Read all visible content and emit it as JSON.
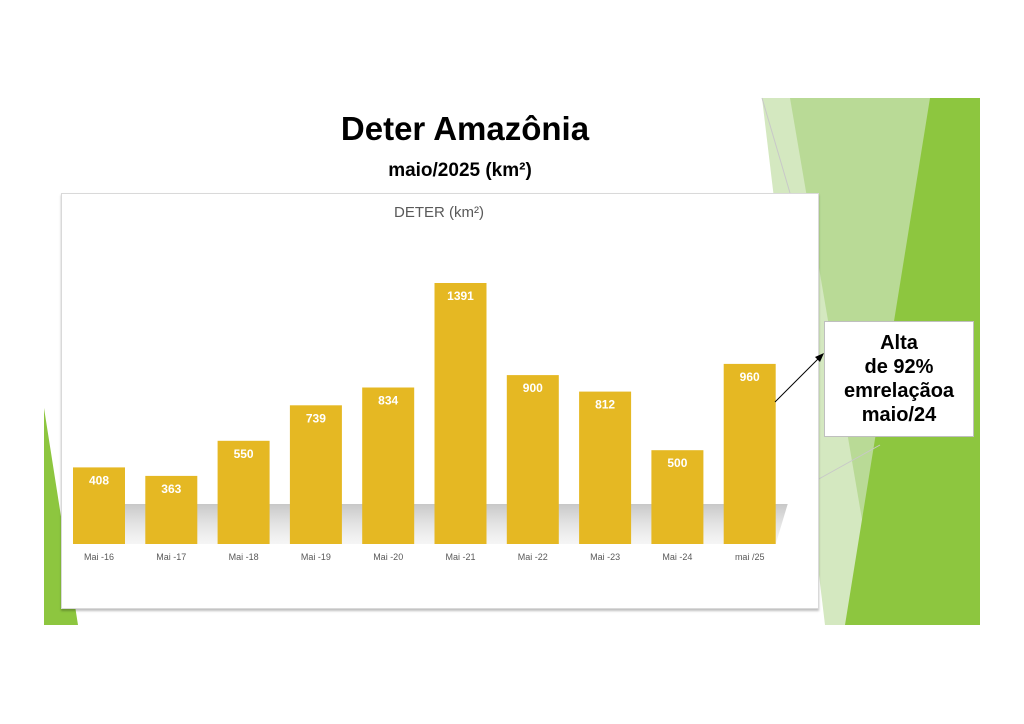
{
  "slide": {
    "title": "Deter Amazônia",
    "subtitle": "maio/2025 (km²)",
    "callout_lines": [
      "Alta",
      "de 92%",
      "emrelaçãoa",
      "maio/24"
    ]
  },
  "colors": {
    "bar": "#E5B823",
    "bar_label": "#ffffff",
    "green_dark": "#8DC63F",
    "green_light": "#D4E8C0"
  },
  "chart_data": {
    "type": "bar",
    "title": "DETER (km²)",
    "categories": [
      "Mai -16",
      "Mai -17",
      "Mai -18",
      "Mai -19",
      "Mai -20",
      "Mai -21",
      "Mai -22",
      "Mai -23",
      "Mai -24",
      "mai /25"
    ],
    "values": [
      408,
      363,
      550,
      739,
      834,
      1391,
      900,
      812,
      500,
      960
    ],
    "xlabel": "",
    "ylabel": "",
    "ylim": [
      0,
      1391
    ],
    "grid": false,
    "legend": "none",
    "data_labels": true
  }
}
